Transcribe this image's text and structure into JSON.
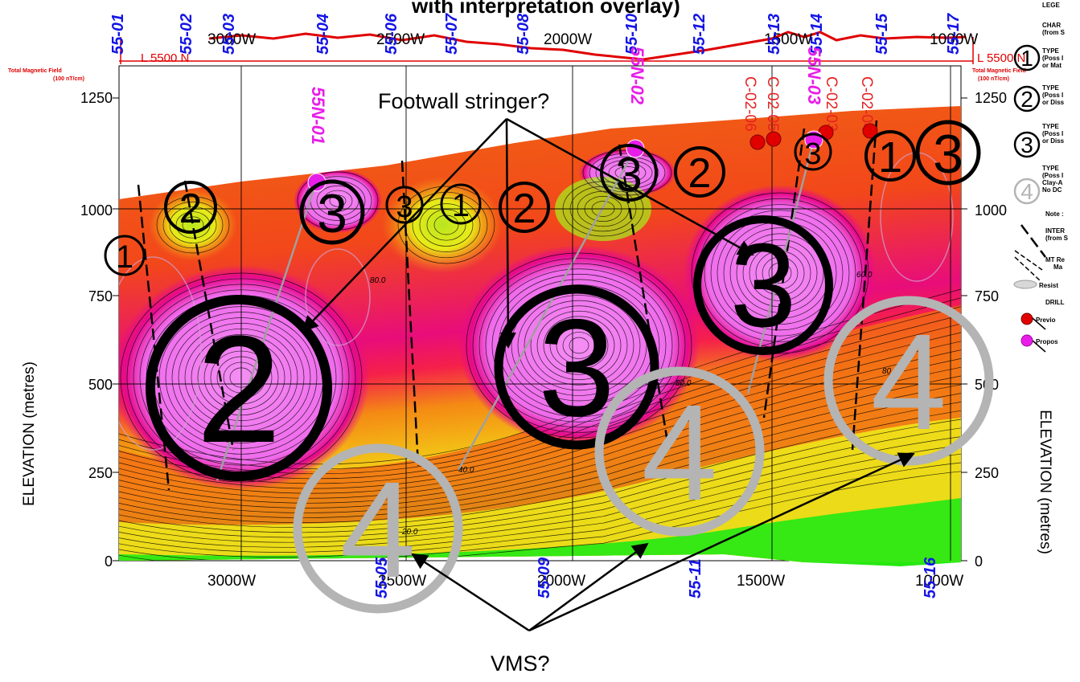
{
  "page_title_fragment": "with interpretation overlay)",
  "line_label_left": "L 5500 N",
  "line_label_right": "L 5500 N",
  "magnetic_label_line1": "Total Magnetic Field",
  "magnetic_label_line2": "(100 nT/cm)",
  "easting_top": [
    "3000W",
    "2500W",
    "2000W",
    "1500W",
    "1000W"
  ],
  "easting_bottom": [
    "3000W",
    "2500W",
    "2000W",
    "1500W",
    "1000W"
  ],
  "elevation_ticks": [
    "1250",
    "1000",
    "750",
    "500",
    "250",
    "0"
  ],
  "elevation_ticks_right": [
    "1250",
    "1000",
    "750",
    "500",
    "250",
    "0"
  ],
  "y_axis_label": "ELEVATION (metres)",
  "y_axis_label_right": "ELEVATION (metres)",
  "stations_top": [
    "55-01",
    "55-02",
    "55-03",
    "55-04",
    "55-06",
    "55-07",
    "55-08",
    "55-10",
    "55-12",
    "55-13",
    "55-14",
    "55-15",
    "55-17"
  ],
  "stations_bottom": [
    "55-05",
    "55-09",
    "55-11",
    "55-16"
  ],
  "proposed_holes": [
    "55N-01",
    "55N-02",
    "55N-03"
  ],
  "previous_holes": [
    "C-02-06",
    "C-02-05",
    "C-02-03",
    "C-02-04"
  ],
  "contour_values": [
    "80.0",
    "60.0",
    "80.0",
    "80.0",
    "20.0",
    "40.0"
  ],
  "annotations": {
    "footwall": "Footwall stringer?",
    "vms": "VMS?"
  },
  "anomaly_types": [
    "1",
    "1",
    "1",
    "2",
    "2",
    "2",
    "2",
    "3",
    "3",
    "3",
    "3",
    "3",
    "3",
    "4",
    "4",
    "4",
    "4"
  ],
  "legend": {
    "title": "LEGE",
    "char_line1": "CHAR",
    "char_line2": "(from S",
    "type1_a": "TYPE",
    "type1_b": "(Poss I",
    "type1_c": "or Mat",
    "type2_a": "TYPE",
    "type2_b": "(Poss I",
    "type2_c": "or Diss",
    "type3_a": "TYPE",
    "type3_b": "(Poss I",
    "type3_c": "or Diss",
    "type4_a": "TYPE",
    "type4_b": "(Poss I",
    "type4_c": "Clay-A",
    "type4_d": "No DC",
    "symbols": [
      "1",
      "2",
      "3",
      "4"
    ],
    "note": "Note :",
    "inter_a": "INTER",
    "inter_b": "(from S",
    "mt_a": "MT Re",
    "mt_b": "Ma",
    "resist": "Resist",
    "drill": "DRILL",
    "previous": "Previo",
    "proposed": "Propos"
  },
  "colors": {
    "hot_pink": "#f07cf0",
    "magenta": "#e8008c",
    "red": "#f01818",
    "orange": "#f07010",
    "yellow": "#f8f018",
    "green": "#30e810",
    "station_blue": "#1414e6",
    "proposed_magenta": "#e81ee8"
  }
}
